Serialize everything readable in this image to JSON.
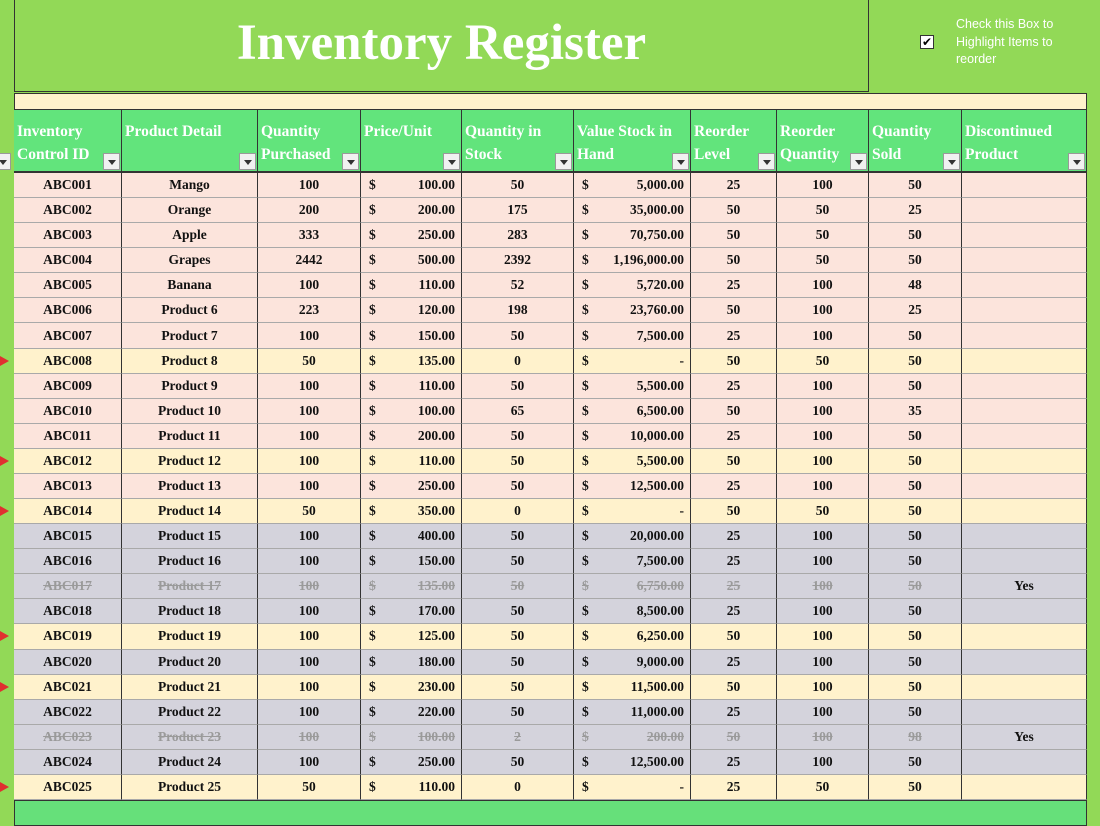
{
  "header": {
    "title": "Inventory Register",
    "checkbox_label": "Check this Box to Highlight Items to reorder",
    "checkbox_checked": true
  },
  "table": {
    "currency_symbol": "$",
    "columns": [
      "Inventory Control ID",
      "Product Detail",
      "Quantity Purchased",
      "Price/Unit",
      "Quantity in Stock",
      "Value Stock in Hand",
      "Reorder Level",
      "Reorder Quantity",
      "Quantity Sold",
      "Discontinued Product"
    ],
    "rows": [
      [
        "ABC001",
        "Mango",
        100,
        "100.00",
        50,
        "5,000.00",
        25,
        100,
        50,
        null
      ],
      [
        "ABC002",
        "Orange",
        200,
        "200.00",
        175,
        "35,000.00",
        50,
        50,
        25,
        null
      ],
      [
        "ABC003",
        "Apple",
        333,
        "250.00",
        283,
        "70,750.00",
        50,
        50,
        50,
        null
      ],
      [
        "ABC004",
        "Grapes",
        2442,
        "500.00",
        2392,
        "1,196,000.00",
        50,
        50,
        50,
        null
      ],
      [
        "ABC005",
        "Banana",
        100,
        "110.00",
        52,
        "5,720.00",
        25,
        100,
        48,
        null
      ],
      [
        "ABC006",
        "Product 6",
        223,
        "120.00",
        198,
        "23,760.00",
        50,
        100,
        25,
        null
      ],
      [
        "ABC007",
        "Product 7",
        100,
        "150.00",
        50,
        "7,500.00",
        25,
        100,
        50,
        null
      ],
      [
        "ABC008",
        "Product 8",
        50,
        "135.00",
        0,
        "-",
        50,
        50,
        50,
        null
      ],
      [
        "ABC009",
        "Product 9",
        100,
        "110.00",
        50,
        "5,500.00",
        25,
        100,
        50,
        null
      ],
      [
        "ABC010",
        "Product 10",
        100,
        "100.00",
        65,
        "6,500.00",
        50,
        100,
        35,
        null
      ],
      [
        "ABC011",
        "Product 11",
        100,
        "200.00",
        50,
        "10,000.00",
        25,
        100,
        50,
        null
      ],
      [
        "ABC012",
        "Product 12",
        100,
        "110.00",
        50,
        "5,500.00",
        50,
        100,
        50,
        null
      ],
      [
        "ABC013",
        "Product 13",
        100,
        "250.00",
        50,
        "12,500.00",
        25,
        100,
        50,
        null
      ],
      [
        "ABC014",
        "Product 14",
        50,
        "350.00",
        0,
        "-",
        50,
        50,
        50,
        null
      ],
      [
        "ABC015",
        "Product 15",
        100,
        "400.00",
        50,
        "20,000.00",
        25,
        100,
        50,
        null
      ],
      [
        "ABC016",
        "Product 16",
        100,
        "150.00",
        50,
        "7,500.00",
        25,
        100,
        50,
        null
      ],
      [
        "ABC017",
        "Product 17",
        100,
        "135.00",
        50,
        "6,750.00",
        25,
        100,
        50,
        "Yes"
      ],
      [
        "ABC018",
        "Product 18",
        100,
        "170.00",
        50,
        "8,500.00",
        25,
        100,
        50,
        null
      ],
      [
        "ABC019",
        "Product 19",
        100,
        "125.00",
        50,
        "6,250.00",
        50,
        100,
        50,
        null
      ],
      [
        "ABC020",
        "Product 20",
        100,
        "180.00",
        50,
        "9,000.00",
        25,
        100,
        50,
        null
      ],
      [
        "ABC021",
        "Product 21",
        100,
        "230.00",
        50,
        "11,500.00",
        50,
        100,
        50,
        null
      ],
      [
        "ABC022",
        "Product 22",
        100,
        "220.00",
        50,
        "11,000.00",
        25,
        100,
        50,
        null
      ],
      [
        "ABC023",
        "Product 23",
        100,
        "100.00",
        2,
        "200.00",
        50,
        100,
        98,
        "Yes"
      ],
      [
        "ABC024",
        "Product 24",
        100,
        "250.00",
        50,
        "12,500.00",
        25,
        100,
        50,
        null
      ],
      [
        "ABC025",
        "Product 25",
        50,
        "110.00",
        0,
        "-",
        25,
        50,
        50,
        null
      ]
    ],
    "row_colors": [
      "#fce4dc",
      "#fce4dc",
      "#fce4dc",
      "#fce4dc",
      "#fce4dc",
      "#fce4dc",
      "#fce4dc",
      "#fff2cc",
      "#fce4dc",
      "#fce4dc",
      "#fce4dc",
      "#fff2cc",
      "#fce4dc",
      "#fff2cc",
      "#d4d3dc",
      "#d4d3dc",
      "#d4d3dc",
      "#d4d3dc",
      "#fff2cc",
      "#d4d3dc",
      "#fff2cc",
      "#d4d3dc",
      "#d4d3dc",
      "#d4d3dc",
      "#fff2cc"
    ],
    "reorder_color": "#fff2cc"
  }
}
